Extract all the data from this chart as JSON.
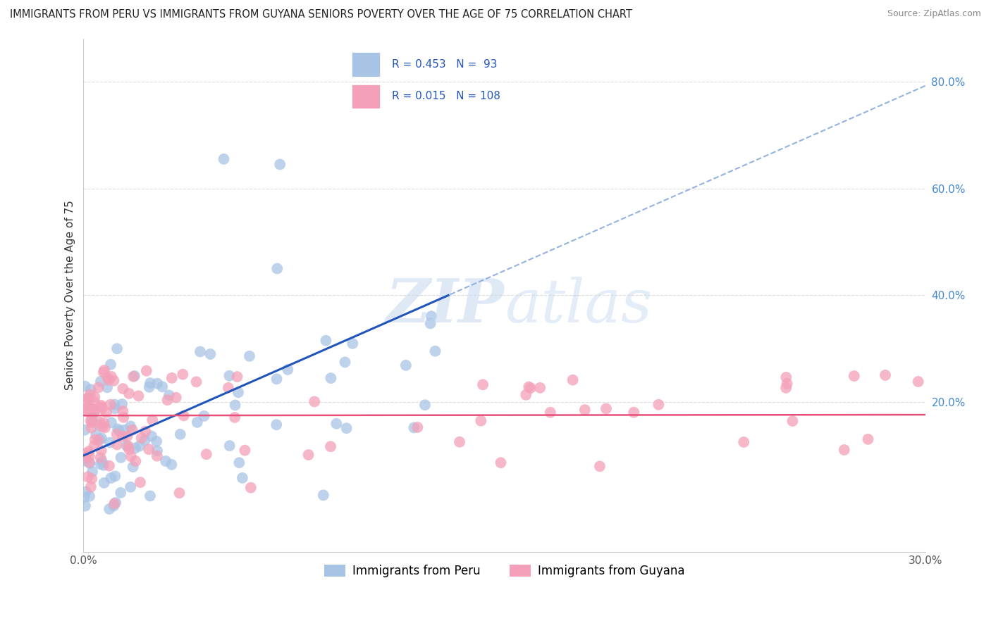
{
  "title": "IMMIGRANTS FROM PERU VS IMMIGRANTS FROM GUYANA SENIORS POVERTY OVER THE AGE OF 75 CORRELATION CHART",
  "source": "Source: ZipAtlas.com",
  "ylabel": "Seniors Poverty Over the Age of 75",
  "x_min": 0.0,
  "x_max": 0.3,
  "y_min": -0.08,
  "y_max": 0.88,
  "peru_color": "#a8c4e5",
  "guyana_color": "#f4a0b8",
  "peru_line_color": "#2255bb",
  "guyana_line_color": "#e8507a",
  "dashed_line_color": "#88aadd",
  "peru_R": 0.453,
  "peru_N": 93,
  "guyana_R": 0.015,
  "guyana_N": 108,
  "background_color": "#ffffff",
  "grid_color": "#cccccc",
  "watermark_color": "#c5d8ee",
  "legend_label_peru": "Immigrants from Peru",
  "legend_label_guyana": "Immigrants from Guyana",
  "legend_box_color": "#e8f0f8",
  "legend_border_color": "#aaaacc"
}
